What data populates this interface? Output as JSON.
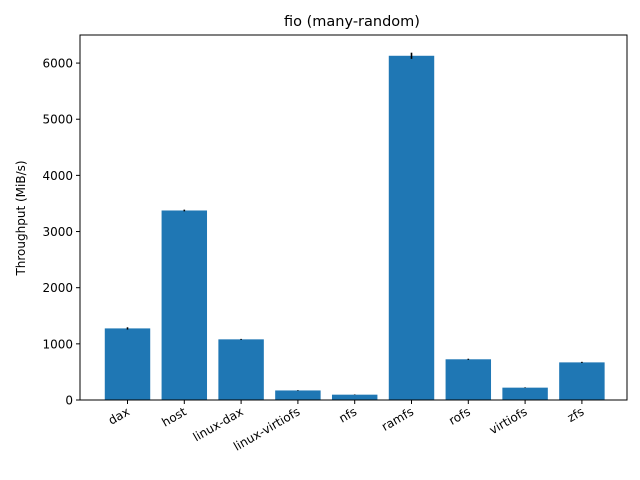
{
  "chart_data": {
    "type": "bar",
    "title": "fio (many-random)",
    "xlabel": "",
    "ylabel": "Throughput (MiB/s)",
    "categories": [
      "dax",
      "host",
      "linux-dax",
      "linux-virtiofs",
      "nfs",
      "ramfs",
      "rofs",
      "virtiofs",
      "zfs"
    ],
    "values": [
      1275,
      3375,
      1080,
      170,
      95,
      6130,
      725,
      220,
      670
    ],
    "errors": [
      20,
      15,
      8,
      5,
      4,
      55,
      10,
      5,
      10
    ],
    "ylim": [
      0,
      6500
    ],
    "yticks": [
      0,
      1000,
      2000,
      3000,
      4000,
      5000,
      6000
    ],
    "xtick_rotation": -30,
    "grid": false,
    "colors": {
      "bar": "#1f77b4",
      "error": "#000000",
      "axis": "#000000"
    }
  }
}
